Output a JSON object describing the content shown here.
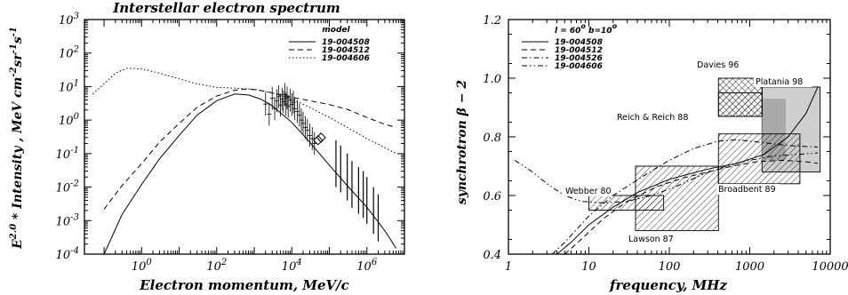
{
  "chart_data": [
    {
      "type": "line",
      "title": "Interstellar electron spectrum",
      "xlabel": "Electron momentum, MeV/c",
      "ylabel_parts": [
        "E",
        "2.0",
        " * Intensity , MeV cm",
        "-2",
        "sr",
        "-1",
        "s",
        "-1"
      ],
      "xscale": "log",
      "yscale": "log",
      "xlim": [
        0.03,
        10000000.0
      ],
      "ylim": [
        0.0001,
        1000.0
      ],
      "x_ticks": [
        {
          "v": 1,
          "b": "10",
          "e": "0"
        },
        {
          "v": 100,
          "b": "10",
          "e": "2"
        },
        {
          "v": 10000,
          "b": "10",
          "e": "4"
        },
        {
          "v": 1000000,
          "b": "10",
          "e": "6"
        }
      ],
      "y_ticks": [
        {
          "v": 0.0001,
          "b": "10",
          "e": "-4"
        },
        {
          "v": 0.001,
          "b": "10",
          "e": "-3"
        },
        {
          "v": 0.01,
          "b": "10",
          "e": "-2"
        },
        {
          "v": 0.1,
          "b": "10",
          "e": "-1"
        },
        {
          "v": 1,
          "b": "10",
          "e": "0"
        },
        {
          "v": 10,
          "b": "10",
          "e": "1"
        },
        {
          "v": 100,
          "b": "10",
          "e": "2"
        },
        {
          "v": 1000,
          "b": "10",
          "e": "3"
        }
      ],
      "legend_title": "model",
      "legend_position": "top-right",
      "series": [
        {
          "name": "19-004508",
          "dash": "solid",
          "points": [
            [
              0.1,
              0.0001
            ],
            [
              0.3,
              0.0015
            ],
            [
              1,
              0.012
            ],
            [
              3,
              0.07
            ],
            [
              10,
              0.35
            ],
            [
              30,
              1.4
            ],
            [
              100,
              3.8
            ],
            [
              300,
              6.0
            ],
            [
              700,
              5.6
            ],
            [
              1500,
              4.2
            ],
            [
              3000,
              2.7
            ],
            [
              10000,
              0.85
            ],
            [
              30000,
              0.22
            ],
            [
              100000,
              0.045
            ],
            [
              300000,
              0.011
            ],
            [
              1000000,
              0.0025
            ],
            [
              3000000,
              0.0005
            ],
            [
              6000000,
              0.00015
            ]
          ]
        },
        {
          "name": "19-004512",
          "dash": "dashed",
          "points": [
            [
              0.1,
              0.0022
            ],
            [
              0.3,
              0.011
            ],
            [
              1,
              0.05
            ],
            [
              3,
              0.22
            ],
            [
              10,
              0.8
            ],
            [
              30,
              2.4
            ],
            [
              100,
              5.2
            ],
            [
              300,
              7.8
            ],
            [
              700,
              8.5
            ],
            [
              1500,
              7.6
            ],
            [
              3000,
              6.5
            ],
            [
              10000,
              4.8
            ],
            [
              30000,
              3.8
            ],
            [
              100000,
              2.9
            ],
            [
              300000,
              2.1
            ],
            [
              1000000,
              1.2
            ],
            [
              3000000,
              0.75
            ],
            [
              6000000,
              0.6
            ]
          ]
        },
        {
          "name": "19-004606",
          "dash": "dotted",
          "points": [
            [
              0.05,
              6
            ],
            [
              0.1,
              12
            ],
            [
              0.2,
              25
            ],
            [
              0.4,
              35
            ],
            [
              1,
              34
            ],
            [
              3,
              25
            ],
            [
              10,
              17
            ],
            [
              30,
              12
            ],
            [
              100,
              9.5
            ],
            [
              300,
              9
            ],
            [
              1000,
              8.3
            ],
            [
              3000,
              6.5
            ],
            [
              10000,
              4.2
            ],
            [
              30000,
              2.4
            ],
            [
              100000,
              1.2
            ],
            [
              300000,
              0.6
            ],
            [
              1000000,
              0.28
            ],
            [
              3000000,
              0.15
            ],
            [
              6000000,
              0.1
            ]
          ]
        }
      ],
      "data_points": [
        [
          2000,
          3
        ],
        [
          2500,
          1.5
        ],
        [
          3000,
          4.5
        ],
        [
          3500,
          2.2
        ],
        [
          4000,
          3.8
        ],
        [
          4500,
          5.0
        ],
        [
          5000,
          2.8
        ],
        [
          5500,
          4.2
        ],
        [
          6000,
          3.5
        ],
        [
          6500,
          5.8
        ],
        [
          7000,
          3.0
        ],
        [
          7500,
          4.6
        ],
        [
          8000,
          2.6
        ],
        [
          9000,
          3.9
        ],
        [
          10000,
          2.9
        ],
        [
          11000,
          3.4
        ],
        [
          12000,
          2.2
        ],
        [
          14000,
          1.8
        ],
        [
          16000,
          1.4
        ],
        [
          18000,
          1.0
        ],
        [
          20000,
          0.8
        ],
        [
          23000,
          0.6
        ],
        [
          26000,
          0.5
        ],
        [
          30000,
          0.35
        ],
        [
          35000,
          0.28
        ],
        [
          40000,
          0.2
        ]
      ],
      "diamond_points": [
        [
          50000,
          0.25
        ],
        [
          60000,
          0.3
        ]
      ],
      "high_energy_points": [
        [
          150000,
          0.05
        ],
        [
          200000,
          0.035
        ],
        [
          300000,
          0.02
        ],
        [
          400000,
          0.012
        ],
        [
          600000,
          0.008
        ],
        [
          800000,
          0.006
        ],
        [
          1000000,
          0.004
        ],
        [
          1500000,
          0.002
        ],
        [
          2000000,
          0.0012
        ]
      ]
    },
    {
      "type": "line",
      "title": "",
      "xlabel": "frequency, MHz",
      "ylabel": "synchrotron β − 2",
      "xscale": "log",
      "xlim": [
        1,
        10000
      ],
      "ylim": [
        0.4,
        1.2
      ],
      "x_ticks": [
        1,
        10,
        100,
        1000,
        10000
      ],
      "y_ticks": [
        "0.4",
        "0.6",
        "0.8",
        "1.0",
        "1.2"
      ],
      "legend_title_parts": [
        "l = 60",
        "o",
        "  b=10",
        "o"
      ],
      "legend_position": "top-left",
      "series": [
        {
          "name": "19-004508",
          "dash": "solid",
          "points": [
            [
              4,
              0.4
            ],
            [
              6,
              0.44
            ],
            [
              10,
              0.5
            ],
            [
              20,
              0.56
            ],
            [
              40,
              0.61
            ],
            [
              100,
              0.655
            ],
            [
              300,
              0.69
            ],
            [
              700,
              0.71
            ],
            [
              1500,
              0.74
            ],
            [
              3000,
              0.8
            ],
            [
              5000,
              0.88
            ],
            [
              7000,
              0.97
            ]
          ]
        },
        {
          "name": "19-004512",
          "dash": "dashed",
          "points": [
            [
              5,
              0.4
            ],
            [
              8,
              0.45
            ],
            [
              15,
              0.52
            ],
            [
              30,
              0.58
            ],
            [
              70,
              0.63
            ],
            [
              150,
              0.66
            ],
            [
              300,
              0.68
            ],
            [
              600,
              0.7
            ],
            [
              1200,
              0.715
            ],
            [
              2500,
              0.72
            ],
            [
              5000,
              0.715
            ],
            [
              7000,
              0.71
            ]
          ]
        },
        {
          "name": "19-004526",
          "dash": "dashdot",
          "points": [
            [
              3.5,
              0.4
            ],
            [
              5,
              0.44
            ],
            [
              10,
              0.53
            ],
            [
              20,
              0.6
            ],
            [
              50,
              0.67
            ],
            [
              100,
              0.72
            ],
            [
              200,
              0.76
            ],
            [
              400,
              0.785
            ],
            [
              700,
              0.79
            ],
            [
              1500,
              0.78
            ],
            [
              3000,
              0.77
            ],
            [
              7000,
              0.765
            ]
          ]
        },
        {
          "name": "19-004606",
          "dash": "dashdotdot",
          "points": [
            [
              1.2,
              0.72
            ],
            [
              2,
              0.68
            ],
            [
              3,
              0.64
            ],
            [
              5,
              0.6
            ],
            [
              8,
              0.58
            ],
            [
              15,
              0.575
            ],
            [
              30,
              0.58
            ],
            [
              60,
              0.6
            ],
            [
              120,
              0.63
            ],
            [
              250,
              0.67
            ],
            [
              500,
              0.7
            ],
            [
              1000,
              0.72
            ],
            [
              2000,
              0.735
            ],
            [
              4000,
              0.74
            ],
            [
              7000,
              0.745
            ]
          ]
        }
      ],
      "boxes": [
        {
          "label": "Davies 96",
          "x": [
            408,
            1420
          ],
          "y": [
            0.87,
            1.0
          ],
          "fill": "crosshatch"
        },
        {
          "label": "Platania 98",
          "x": [
            1420,
            7500
          ],
          "y": [
            0.68,
            0.97
          ],
          "fill": "lightgray"
        },
        {
          "label": "Reich & Reich 88",
          "x": [
            408,
            1420
          ],
          "y": [
            0.87,
            0.95
          ],
          "fill": "hatch"
        },
        {
          "label": "Broadbent 89",
          "x": [
            408,
            4200
          ],
          "y": [
            0.64,
            0.81
          ],
          "fill": "hatch"
        },
        {
          "label": "Webber 80",
          "x": [
            10,
            85
          ],
          "y": [
            0.55,
            0.6
          ],
          "fill": "hatch"
        },
        {
          "label": "Lawson 87",
          "x": [
            38,
            408
          ],
          "y": [
            0.48,
            0.7
          ],
          "fill": "hatch"
        }
      ]
    }
  ]
}
